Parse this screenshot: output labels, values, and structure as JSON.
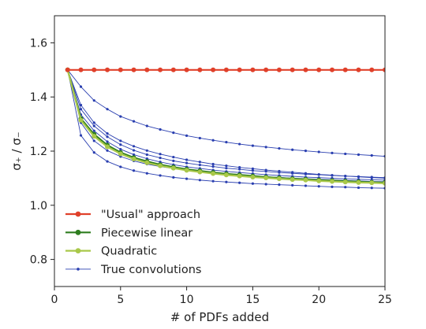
{
  "chart_data": {
    "type": "line",
    "xlabel": "# of PDFs added",
    "ylabel": "σ₊ / σ₋",
    "xlim": [
      0,
      25
    ],
    "ylim": [
      0.7,
      1.7
    ],
    "xticks": [
      0,
      5,
      10,
      15,
      20,
      25
    ],
    "yticks": [
      0.8,
      1.0,
      1.2,
      1.4,
      1.6
    ],
    "grid": false,
    "legend_position": "lower-left",
    "x": [
      1,
      2,
      3,
      4,
      5,
      6,
      7,
      8,
      9,
      10,
      11,
      12,
      13,
      14,
      15,
      16,
      17,
      18,
      19,
      20,
      21,
      22,
      23,
      24,
      25
    ],
    "series": [
      {
        "name": "True convolutions",
        "color": "#2a3fb0",
        "marker": "small-dot",
        "linewidth": 0.9,
        "legend": false,
        "values": [
          1.5,
          1.258,
          1.195,
          1.162,
          1.142,
          1.128,
          1.118,
          1.11,
          1.103,
          1.098,
          1.093,
          1.089,
          1.086,
          1.083,
          1.08,
          1.078,
          1.076,
          1.074,
          1.072,
          1.07,
          1.068,
          1.067,
          1.065,
          1.064,
          1.063
        ]
      },
      {
        "name": "True convolutions",
        "color": "#2a3fb0",
        "marker": "small-dot",
        "linewidth": 0.9,
        "legend": false,
        "values": [
          1.5,
          1.305,
          1.238,
          1.202,
          1.18,
          1.164,
          1.152,
          1.143,
          1.136,
          1.129,
          1.124,
          1.119,
          1.115,
          1.112,
          1.108,
          1.105,
          1.103,
          1.1,
          1.098,
          1.096,
          1.094,
          1.092,
          1.09,
          1.088,
          1.087
        ]
      },
      {
        "name": "True convolutions",
        "color": "#2a3fb0",
        "marker": "small-dot",
        "linewidth": 0.9,
        "legend": false,
        "values": [
          1.5,
          1.335,
          1.275,
          1.235,
          1.207,
          1.187,
          1.172,
          1.16,
          1.15,
          1.142,
          1.136,
          1.13,
          1.125,
          1.121,
          1.117,
          1.113,
          1.11,
          1.107,
          1.104,
          1.102,
          1.1,
          1.098,
          1.096,
          1.094,
          1.093
        ]
      },
      {
        "name": "True convolutions",
        "color": "#2a3fb0",
        "marker": "small-dot",
        "linewidth": 0.9,
        "legend": false,
        "values": [
          1.5,
          1.355,
          1.293,
          1.253,
          1.224,
          1.203,
          1.187,
          1.175,
          1.164,
          1.156,
          1.149,
          1.143,
          1.137,
          1.133,
          1.128,
          1.125,
          1.121,
          1.118,
          1.115,
          1.113,
          1.11,
          1.108,
          1.106,
          1.104,
          1.102
        ]
      },
      {
        "name": "True convolutions",
        "color": "#2a3fb0",
        "marker": "small-dot",
        "linewidth": 0.9,
        "legend": false,
        "values": [
          1.5,
          1.438,
          1.387,
          1.355,
          1.328,
          1.31,
          1.293,
          1.28,
          1.268,
          1.257,
          1.248,
          1.24,
          1.233,
          1.226,
          1.22,
          1.215,
          1.21,
          1.205,
          1.201,
          1.197,
          1.193,
          1.19,
          1.187,
          1.184,
          1.181
        ]
      },
      {
        "name": "True convolutions",
        "color": "#2a3fb0",
        "marker": "small-dot",
        "linewidth": 0.9,
        "legend": true,
        "values": [
          1.5,
          1.37,
          1.305,
          1.265,
          1.238,
          1.218,
          1.202,
          1.189,
          1.178,
          1.168,
          1.16,
          1.152,
          1.146,
          1.14,
          1.135,
          1.13,
          1.126,
          1.122,
          1.118,
          1.114,
          1.111,
          1.108,
          1.105,
          1.102,
          1.1
        ]
      },
      {
        "name": "Piecewise linear",
        "color": "#2e7d1f",
        "marker": "dot",
        "linewidth": 2.2,
        "legend": true,
        "values": [
          1.5,
          1.32,
          1.262,
          1.222,
          1.195,
          1.176,
          1.162,
          1.15,
          1.141,
          1.133,
          1.127,
          1.121,
          1.116,
          1.112,
          1.108,
          1.104,
          1.101,
          1.098,
          1.096,
          1.093,
          1.091,
          1.089,
          1.087,
          1.085,
          1.084
        ]
      },
      {
        "name": "Quadratic",
        "color": "#a9c84a",
        "marker": "dot",
        "linewidth": 2.2,
        "legend": true,
        "values": [
          1.5,
          1.314,
          1.255,
          1.216,
          1.19,
          1.171,
          1.157,
          1.146,
          1.137,
          1.129,
          1.123,
          1.117,
          1.112,
          1.108,
          1.104,
          1.101,
          1.098,
          1.095,
          1.093,
          1.09,
          1.088,
          1.086,
          1.084,
          1.083,
          1.081
        ]
      },
      {
        "name": "\"Usual\" approach",
        "color": "#e0402a",
        "marker": "dot",
        "linewidth": 2.2,
        "legend": true,
        "values": [
          1.5,
          1.5,
          1.5,
          1.5,
          1.5,
          1.5,
          1.5,
          1.5,
          1.5,
          1.5,
          1.5,
          1.5,
          1.5,
          1.5,
          1.5,
          1.5,
          1.5,
          1.5,
          1.5,
          1.5,
          1.5,
          1.5,
          1.5,
          1.5,
          1.5
        ]
      }
    ],
    "legend": [
      {
        "label": "\"Usual\" approach",
        "color": "#e0402a",
        "marker": "dot"
      },
      {
        "label": "Piecewise linear",
        "color": "#2e7d1f",
        "marker": "dot"
      },
      {
        "label": "Quadratic",
        "color": "#a9c84a",
        "marker": "dot"
      },
      {
        "label": "True convolutions",
        "color": "#2a3fb0",
        "marker": "small-dot"
      }
    ]
  }
}
